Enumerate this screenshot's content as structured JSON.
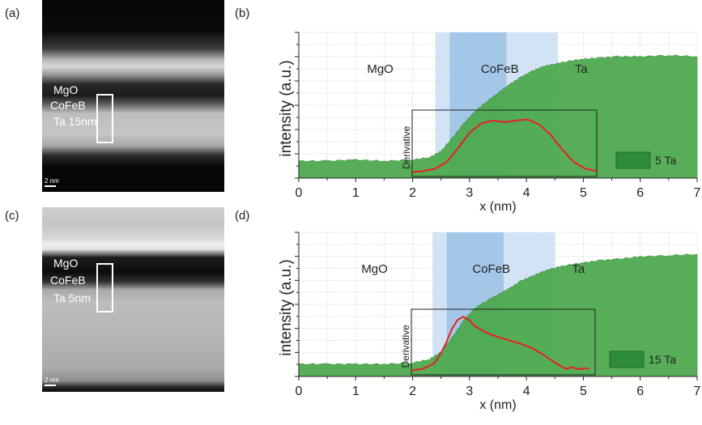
{
  "panels": {
    "a": {
      "letter": "(a)",
      "layers": [
        "MgO",
        "CoFeB",
        "Ta 15nm"
      ],
      "scale_label": "2 nm"
    },
    "b": {
      "letter": "(b)"
    },
    "c": {
      "letter": "(c)",
      "layers": [
        "MgO",
        "CoFeB",
        "Ta 5nm"
      ],
      "scale_label": "2 nm"
    },
    "d": {
      "letter": "(d)"
    }
  },
  "colors": {
    "intensity_fill": "#4aa84a",
    "inset_fill": "#2e8b3a",
    "derivative_line": "#e82020",
    "mgo_band": "#cfe1f3",
    "cofeb_band": "#9fc4e6"
  },
  "chart_data": [
    {
      "type": "area",
      "panel": "b",
      "xlabel": "x (nm)",
      "ylabel": "intensity (a.u.)",
      "xlim": [
        0,
        7
      ],
      "xticks": [
        "0",
        "1",
        "2",
        "3",
        "4",
        "5",
        "6",
        "7"
      ],
      "grid": true,
      "region_labels": [
        {
          "text": "MgO",
          "x": 1.2
        },
        {
          "text": "CoFeB",
          "x": 3.2
        },
        {
          "text": "Ta",
          "x": 4.85
        }
      ],
      "bands": [
        {
          "from": 2.4,
          "to": 2.65,
          "tone": "light"
        },
        {
          "from": 2.65,
          "to": 3.65,
          "tone": "dark"
        },
        {
          "from": 3.65,
          "to": 4.55,
          "tone": "light"
        }
      ],
      "legend": {
        "text": "5 Ta",
        "placement": "right"
      },
      "intensity": {
        "x": [
          0,
          0.5,
          1.0,
          1.5,
          2.0,
          2.3,
          2.5,
          2.7,
          2.9,
          3.1,
          3.3,
          3.5,
          3.7,
          3.9,
          4.1,
          4.3,
          4.5,
          4.7,
          5.0,
          5.3,
          5.6,
          6.0,
          6.5,
          7.0
        ],
        "y": [
          0.14,
          0.14,
          0.15,
          0.14,
          0.15,
          0.17,
          0.22,
          0.33,
          0.45,
          0.55,
          0.63,
          0.7,
          0.77,
          0.83,
          0.88,
          0.92,
          0.94,
          0.96,
          0.98,
          0.99,
          1.0,
          1.0,
          1.01,
          1.0
        ]
      },
      "derivative": {
        "label": "Derivative",
        "xlim": [
          2.0,
          5.2
        ],
        "x": [
          2.0,
          2.2,
          2.4,
          2.6,
          2.8,
          3.0,
          3.2,
          3.4,
          3.6,
          3.8,
          4.0,
          4.2,
          4.4,
          4.6,
          4.8,
          5.0,
          5.2
        ],
        "y": [
          0.02,
          0.04,
          0.08,
          0.2,
          0.45,
          0.72,
          0.88,
          0.93,
          0.9,
          0.93,
          0.95,
          0.86,
          0.68,
          0.42,
          0.2,
          0.08,
          0.04
        ]
      }
    },
    {
      "type": "area",
      "panel": "d",
      "xlabel": "x (nm)",
      "ylabel": "intensity (a.u.)",
      "xlim": [
        0,
        7
      ],
      "xticks": [
        "0",
        "1",
        "2",
        "3",
        "4",
        "5",
        "6",
        "7"
      ],
      "grid": true,
      "region_labels": [
        {
          "text": "MgO",
          "x": 1.1
        },
        {
          "text": "CoFeB",
          "x": 3.05
        },
        {
          "text": "Ta",
          "x": 4.8
        }
      ],
      "bands": [
        {
          "from": 2.35,
          "to": 2.6,
          "tone": "light"
        },
        {
          "from": 2.6,
          "to": 3.6,
          "tone": "dark"
        },
        {
          "from": 3.6,
          "to": 4.5,
          "tone": "light"
        }
      ],
      "legend": {
        "text": "15 Ta",
        "placement": "right"
      },
      "intensity": {
        "x": [
          0,
          0.5,
          1.0,
          1.5,
          2.0,
          2.3,
          2.5,
          2.7,
          2.9,
          3.1,
          3.3,
          3.5,
          3.7,
          3.9,
          4.1,
          4.3,
          4.5,
          4.7,
          5.0,
          5.3,
          5.6,
          6.0,
          6.5,
          7.0
        ],
        "y": [
          0.1,
          0.1,
          0.1,
          0.1,
          0.11,
          0.14,
          0.2,
          0.32,
          0.46,
          0.56,
          0.62,
          0.67,
          0.72,
          0.78,
          0.82,
          0.86,
          0.89,
          0.91,
          0.93,
          0.95,
          0.96,
          0.98,
          0.99,
          1.0
        ]
      },
      "derivative": {
        "label": "Derivative",
        "xlim": [
          2.0,
          5.2
        ],
        "x": [
          2.0,
          2.2,
          2.4,
          2.5,
          2.6,
          2.7,
          2.8,
          2.9,
          3.0,
          3.1,
          3.3,
          3.5,
          3.7,
          3.9,
          4.1,
          4.3,
          4.5,
          4.6,
          4.7,
          4.8,
          4.9,
          5.0,
          5.1
        ],
        "y": [
          0.02,
          0.05,
          0.15,
          0.3,
          0.5,
          0.75,
          0.92,
          0.98,
          0.93,
          0.82,
          0.7,
          0.62,
          0.56,
          0.5,
          0.42,
          0.3,
          0.16,
          0.1,
          0.05,
          0.08,
          0.04,
          0.06,
          0.05
        ]
      }
    }
  ]
}
